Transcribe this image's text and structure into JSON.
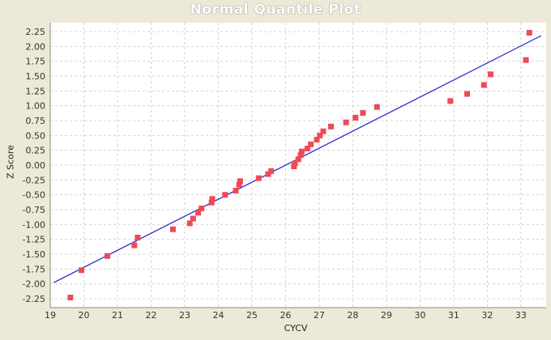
{
  "chart_data": {
    "type": "scatter",
    "title": "Normal Quantile Plot",
    "xlabel": "CYCV",
    "ylabel": "Z Score",
    "xlim": [
      19,
      33.75
    ],
    "ylim": [
      -2.4,
      2.4
    ],
    "x_ticks": [
      "19",
      "20",
      "21",
      "22",
      "23",
      "24",
      "25",
      "26",
      "27",
      "28",
      "29",
      "30",
      "31",
      "32",
      "33"
    ],
    "y_ticks": [
      "2.25",
      "2.00",
      "1.75",
      "1.50",
      "1.25",
      "1.00",
      "0.75",
      "0.50",
      "0.25",
      "0.00",
      "-0.25",
      "-0.50",
      "-0.75",
      "-1.00",
      "-1.25",
      "-1.50",
      "-1.75",
      "-2.00",
      "-2.25"
    ],
    "grid": true,
    "points": [
      {
        "x": 19.6,
        "y": -2.23
      },
      {
        "x": 19.93,
        "y": -1.77
      },
      {
        "x": 20.7,
        "y": -1.53
      },
      {
        "x": 21.5,
        "y": -1.35
      },
      {
        "x": 21.6,
        "y": -1.22
      },
      {
        "x": 22.65,
        "y": -1.08
      },
      {
        "x": 23.15,
        "y": -0.98
      },
      {
        "x": 23.25,
        "y": -0.9
      },
      {
        "x": 23.4,
        "y": -0.8
      },
      {
        "x": 23.5,
        "y": -0.73
      },
      {
        "x": 23.8,
        "y": -0.63
      },
      {
        "x": 23.82,
        "y": -0.57
      },
      {
        "x": 24.2,
        "y": -0.5
      },
      {
        "x": 24.52,
        "y": -0.43
      },
      {
        "x": 24.62,
        "y": -0.33
      },
      {
        "x": 24.65,
        "y": -0.27
      },
      {
        "x": 25.2,
        "y": -0.22
      },
      {
        "x": 25.48,
        "y": -0.15
      },
      {
        "x": 25.57,
        "y": -0.1
      },
      {
        "x": 26.25,
        "y": -0.02
      },
      {
        "x": 26.28,
        "y": 0.03
      },
      {
        "x": 26.38,
        "y": 0.1
      },
      {
        "x": 26.45,
        "y": 0.17
      },
      {
        "x": 26.48,
        "y": 0.23
      },
      {
        "x": 26.65,
        "y": 0.28
      },
      {
        "x": 26.75,
        "y": 0.35
      },
      {
        "x": 26.93,
        "y": 0.43
      },
      {
        "x": 27.02,
        "y": 0.5
      },
      {
        "x": 27.12,
        "y": 0.57
      },
      {
        "x": 27.35,
        "y": 0.65
      },
      {
        "x": 27.8,
        "y": 0.72
      },
      {
        "x": 28.08,
        "y": 0.8
      },
      {
        "x": 28.3,
        "y": 0.88
      },
      {
        "x": 28.72,
        "y": 0.98
      },
      {
        "x": 30.9,
        "y": 1.08
      },
      {
        "x": 31.4,
        "y": 1.2
      },
      {
        "x": 31.9,
        "y": 1.35
      },
      {
        "x": 32.1,
        "y": 1.53
      },
      {
        "x": 33.15,
        "y": 1.77
      },
      {
        "x": 33.25,
        "y": 2.23
      }
    ],
    "reference_line": {
      "x": [
        19.1,
        33.6
      ],
      "y": [
        -1.98,
        2.18
      ]
    },
    "colors": {
      "points": "#ee4a55",
      "line": "#2020cc",
      "grid": "#d4d4d4",
      "plot_bg": "#ffffff",
      "page_bg": "#ece9d8"
    }
  }
}
